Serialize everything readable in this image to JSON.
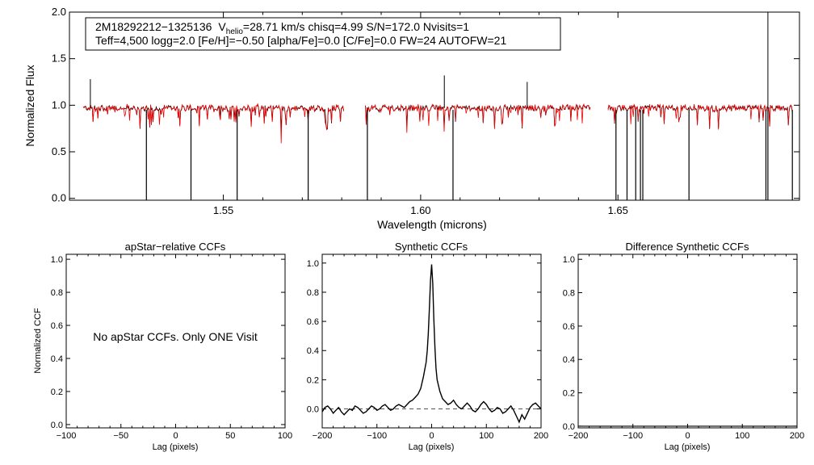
{
  "chart_data": [
    {
      "type": "line",
      "panel": "spectrum",
      "header_line1": {
        "id": "2M18292212−1325136",
        "v_prefix": "V",
        "v_sub": "helio",
        "v_rest": "=28.71 km/s  chisq=4.99  S/N=172.0  Nvisits=1"
      },
      "header_line2": "Teff=4,500 logg=2.0 [Fe/H]=−0.50 [alpha/Fe]=0.0 [C/Fe]=0.0 FW=24 AUTOFW=21",
      "xlabel": "Wavelength (microns)",
      "ylabel": "Normalized Flux",
      "xlim": [
        1.511,
        1.696
      ],
      "ylim": [
        -0.02,
        2.0
      ],
      "xticks": [
        {
          "value": 1.55,
          "label": "1.55"
        },
        {
          "value": 1.6,
          "label": "1.60"
        },
        {
          "value": 1.65,
          "label": "1.65"
        }
      ],
      "yticks": [
        {
          "value": 0.0,
          "label": "0.0"
        },
        {
          "value": 0.5,
          "label": "0.5"
        },
        {
          "value": 1.0,
          "label": "1.0"
        },
        {
          "value": 1.5,
          "label": "1.5"
        },
        {
          "value": 2.0,
          "label": "2.0"
        }
      ],
      "chip_ranges": [
        [
          1.5145,
          1.5805
        ],
        [
          1.586,
          1.643
        ],
        [
          1.6475,
          1.6942
        ]
      ],
      "series": [
        {
          "role": "observed spectrum",
          "color": "#000000"
        },
        {
          "role": "model spectrum",
          "color": "#ee0000"
        }
      ],
      "strong_absorption_x": [
        1.5305,
        1.5418,
        1.5535,
        1.5715,
        1.5865,
        1.6082,
        1.6495,
        1.6523,
        1.6545,
        1.6557,
        1.6563,
        1.668,
        1.6875,
        1.688,
        1.6942
      ],
      "spikes": [
        {
          "x": 1.5163,
          "y": 1.28
        },
        {
          "x": 1.606,
          "y": 1.32
        },
        {
          "x": 1.627,
          "y": 1.25
        },
        {
          "x": 1.688,
          "y": 2.0
        }
      ]
    },
    {
      "type": "line",
      "panel": "apstar-ccf",
      "title": "apStar−relative CCFs",
      "ylabel": "Normalized CCF",
      "xlabel": "Lag (pixels)",
      "xlim": [
        -100,
        100
      ],
      "ylim": [
        -0.02,
        1.03
      ],
      "xticks": [
        {
          "value": -100,
          "label": "−100"
        },
        {
          "value": -50,
          "label": "−50"
        },
        {
          "value": 0,
          "label": "0"
        },
        {
          "value": 50,
          "label": "50"
        },
        {
          "value": 100,
          "label": "100"
        }
      ],
      "yticks": [
        {
          "value": 0,
          "label": "0.0"
        },
        {
          "value": 0.2,
          "label": "0.2"
        },
        {
          "value": 0.4,
          "label": "0.4"
        },
        {
          "value": 0.6,
          "label": "0.6"
        },
        {
          "value": 0.8,
          "label": "0.8"
        },
        {
          "value": 1.0,
          "label": "1.0"
        }
      ],
      "message": "No apStar CCFs.  Only ONE Visit"
    },
    {
      "type": "line",
      "panel": "synthetic-ccf",
      "title": "Synthetic CCFs",
      "xlabel": "Lag (pixels)",
      "xlim": [
        -200,
        200
      ],
      "ylim": [
        -0.13,
        1.06
      ],
      "xticks": [
        {
          "value": -200,
          "label": "−200"
        },
        {
          "value": -100,
          "label": "−100"
        },
        {
          "value": 0,
          "label": "0"
        },
        {
          "value": 100,
          "label": "100"
        },
        {
          "value": 200,
          "label": "200"
        }
      ],
      "yticks": [
        {
          "value": 0,
          "label": "0.0"
        },
        {
          "value": 0.2,
          "label": "0.2"
        },
        {
          "value": 0.4,
          "label": "0.4"
        },
        {
          "value": 0.6,
          "label": "0.6"
        },
        {
          "value": 0.8,
          "label": "0.8"
        },
        {
          "value": 1.0,
          "label": "1.0"
        }
      ],
      "x": [
        -200,
        -195,
        -190,
        -185,
        -180,
        -175,
        -170,
        -165,
        -160,
        -155,
        -150,
        -145,
        -140,
        -135,
        -130,
        -125,
        -120,
        -115,
        -110,
        -105,
        -100,
        -95,
        -90,
        -85,
        -80,
        -75,
        -70,
        -65,
        -60,
        -55,
        -50,
        -45,
        -40,
        -35,
        -30,
        -25,
        -20,
        -15,
        -10,
        -8,
        -6,
        -4,
        -2,
        0,
        2,
        4,
        6,
        8,
        10,
        15,
        20,
        25,
        30,
        35,
        40,
        45,
        50,
        55,
        60,
        65,
        70,
        75,
        80,
        85,
        90,
        95,
        100,
        105,
        110,
        115,
        120,
        125,
        130,
        135,
        140,
        145,
        150,
        155,
        160,
        165,
        170,
        175,
        180,
        185,
        190,
        195,
        200
      ],
      "y": [
        -0.02,
        0.01,
        0.02,
        0.0,
        -0.03,
        -0.01,
        0.01,
        -0.02,
        -0.04,
        -0.02,
        0.0,
        -0.01,
        0.02,
        0.01,
        -0.01,
        -0.03,
        -0.02,
        0.0,
        0.02,
        0.01,
        -0.01,
        0.0,
        0.02,
        0.03,
        0.01,
        -0.01,
        0.0,
        0.02,
        0.03,
        0.02,
        0.01,
        0.03,
        0.05,
        0.06,
        0.08,
        0.1,
        0.14,
        0.22,
        0.32,
        0.4,
        0.52,
        0.7,
        0.88,
        0.99,
        0.86,
        0.62,
        0.42,
        0.28,
        0.2,
        0.12,
        0.07,
        0.05,
        0.03,
        0.04,
        0.06,
        0.03,
        0.01,
        0.0,
        0.02,
        0.04,
        0.02,
        -0.01,
        -0.02,
        0.0,
        0.03,
        0.05,
        0.03,
        0.0,
        -0.02,
        -0.01,
        0.01,
        0.0,
        -0.03,
        -0.02,
        0.0,
        0.02,
        -0.01,
        -0.05,
        -0.09,
        -0.04,
        -0.07,
        -0.03,
        0.01,
        0.03,
        0.04,
        0.02,
        0.0
      ],
      "baseline": 0.0
    },
    {
      "type": "line",
      "panel": "difference-ccf",
      "title": "Difference Synthetic CCFs",
      "xlabel": "Lag (pixels)",
      "xlim": [
        -200,
        200
      ],
      "ylim": [
        -0.01,
        1.03
      ],
      "xticks": [
        {
          "value": -200,
          "label": "−200"
        },
        {
          "value": -100,
          "label": "−100"
        },
        {
          "value": 0,
          "label": "0"
        },
        {
          "value": 100,
          "label": "100"
        },
        {
          "value": 200,
          "label": "200"
        }
      ],
      "yticks": [
        {
          "value": 0,
          "label": "0.0"
        },
        {
          "value": 0.2,
          "label": "0.2"
        },
        {
          "value": 0.4,
          "label": "0.4"
        },
        {
          "value": 0.6,
          "label": "0.6"
        },
        {
          "value": 0.8,
          "label": "0.8"
        },
        {
          "value": 1.0,
          "label": "1.0"
        }
      ],
      "baseline": 0.0
    }
  ]
}
